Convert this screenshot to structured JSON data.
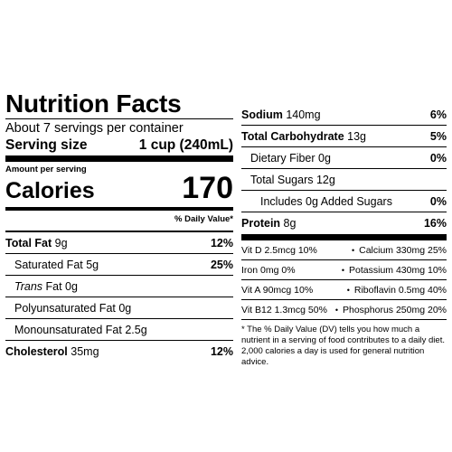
{
  "label": {
    "title": "Nutrition Facts",
    "servings_per_container": "About 7 servings per container",
    "serving_size_label": "Serving size",
    "serving_size_value": "1 cup (240mL)",
    "amount_per_serving": "Amount per serving",
    "calories_label": "Calories",
    "calories_value": "170",
    "daily_value_header": "% Daily Value*"
  },
  "left_rows": [
    {
      "name": "Total Fat",
      "amount": "9g",
      "dv": "12%"
    },
    {
      "name": "Saturated Fat",
      "amount": "5g",
      "dv": "25%"
    },
    {
      "name": "Trans",
      "amount": "Fat 0g",
      "dv": ""
    },
    {
      "name": "Polyunsaturated Fat",
      "amount": "0g",
      "dv": ""
    },
    {
      "name": "Monounsaturated Fat",
      "amount": "2.5g",
      "dv": ""
    },
    {
      "name": "Cholesterol",
      "amount": "35mg",
      "dv": "12%"
    }
  ],
  "right_rows": [
    {
      "name": "Sodium",
      "amount": "140mg",
      "dv": "6%"
    },
    {
      "name": "Total Carbohydrate",
      "amount": "13g",
      "dv": "5%"
    },
    {
      "name": "Dietary Fiber",
      "amount": "0g",
      "dv": "0%"
    },
    {
      "name": "Total Sugars",
      "amount": "12g",
      "dv": ""
    },
    {
      "name": "Includes 0g Added Sugars",
      "amount": "",
      "dv": "0%"
    },
    {
      "name": "Protein",
      "amount": "8g",
      "dv": "16%"
    }
  ],
  "vitamins": [
    {
      "left": "Vit D 2.5mcg 10%",
      "right": "Calcium 330mg 25%"
    },
    {
      "left": "Iron 0mg 0%",
      "right": "Potassium 430mg 10%"
    },
    {
      "left": "Vit A 90mcg 10%",
      "right": "Riboflavin 0.5mg 40%"
    },
    {
      "left": "Vit B12 1.3mcg 50%",
      "right": "Phosphorus 250mg 20%"
    }
  ],
  "bullet": "•",
  "footnote": "* The % Daily Value (DV) tells you how much a nutrient in a serving of food contributes to a daily diet. 2,000 calories a day is used for general nutrition advice."
}
